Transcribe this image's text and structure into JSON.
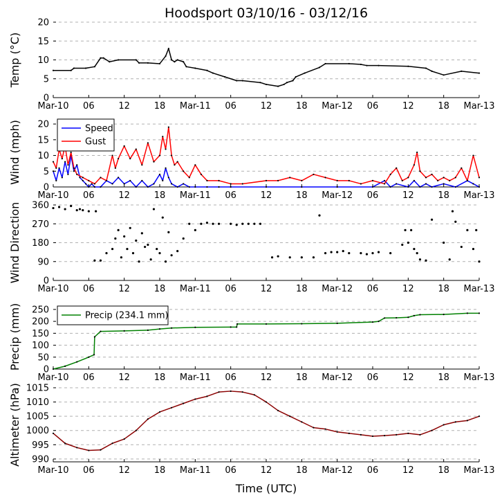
{
  "title": "Hoodsport 03/10/16 - 03/12/16",
  "x_axis": {
    "label": "Time (UTC)",
    "ticks": [
      "Mar-10",
      "06",
      "12",
      "18",
      "Mar-11",
      "06",
      "12",
      "18",
      "Mar-12",
      "06",
      "12",
      "18",
      "Mar-13"
    ],
    "range_hours": [
      0,
      72
    ]
  },
  "colors": {
    "temp": "#000000",
    "speed": "#0000ff",
    "gust": "#ff0000",
    "direction": "#ffa500",
    "precip": "#008000",
    "altimeter": "#8b0000",
    "grid": "#b0b0b0"
  },
  "chart_data": [
    {
      "type": "line",
      "panel": "temp",
      "ylabel": "Temp ($^\\circ$C)",
      "ylabel_display": "Temp (°C)",
      "ylim": [
        0,
        20
      ],
      "yticks": [
        0,
        5,
        10,
        15,
        20
      ],
      "grid": true,
      "series": [
        {
          "x": [
            0,
            3,
            3.5,
            5.5,
            7,
            8,
            8.5,
            9.5,
            11,
            14,
            14.5,
            16,
            18,
            19,
            19.5,
            20,
            20.5,
            21,
            22,
            22.5,
            24,
            26,
            27,
            29,
            31,
            32,
            35,
            36,
            38,
            39,
            39.5,
            40.5,
            41,
            42.5,
            45,
            46,
            50,
            52,
            53,
            55,
            60,
            63,
            64,
            66,
            69,
            72
          ],
          "values": [
            7.2,
            7.2,
            7.8,
            7.8,
            8.2,
            10.5,
            10.5,
            9.5,
            10,
            10,
            9.2,
            9.2,
            9,
            11,
            13,
            10,
            9.5,
            10,
            9.5,
            8.2,
            7.8,
            7.2,
            6.5,
            5.5,
            4.5,
            4.5,
            4,
            3.5,
            3,
            3.5,
            4,
            4.5,
            5.5,
            6.5,
            8,
            9,
            9,
            8.8,
            8.5,
            8.5,
            8.3,
            7.8,
            7,
            6,
            7,
            6.5
          ]
        }
      ]
    },
    {
      "type": "line",
      "panel": "wind",
      "ylabel": "Wind (mph)",
      "ylim": [
        0,
        22
      ],
      "yticks": [
        0,
        5,
        10,
        15,
        20
      ],
      "grid": true,
      "legend": "top-left",
      "series": [
        {
          "name": "Speed",
          "x": [
            0,
            0.5,
            1,
            1.5,
            2,
            2.5,
            3,
            3.5,
            4,
            4.5,
            5,
            5.5,
            6,
            6.5,
            7,
            8,
            9,
            10,
            11,
            12,
            13,
            14,
            15,
            16,
            17,
            18,
            18.5,
            19,
            19.5,
            20,
            21,
            22,
            23,
            24,
            26,
            28,
            30,
            36,
            42,
            48,
            54,
            56,
            57,
            58,
            60,
            61,
            62,
            63,
            64,
            66,
            68,
            70,
            71,
            72
          ],
          "values": [
            5,
            2,
            6,
            3,
            8,
            4,
            10,
            5,
            7,
            3,
            2,
            1,
            0,
            1,
            0,
            0,
            2,
            1,
            3,
            1,
            2,
            0,
            2,
            0,
            1,
            4,
            2,
            6,
            3,
            1,
            0,
            1,
            0,
            0,
            0,
            0,
            0,
            0,
            0,
            0,
            0,
            2,
            0,
            1,
            0,
            2,
            0,
            1,
            0,
            1,
            0,
            2,
            1,
            0
          ]
        },
        {
          "name": "Gust",
          "x": [
            0,
            0.5,
            1,
            1.5,
            2,
            2.5,
            3,
            3.5,
            4,
            5,
            6,
            7,
            8,
            9,
            10,
            10.5,
            11,
            12,
            13,
            14,
            15,
            16,
            17,
            18,
            18.5,
            19,
            19.5,
            20,
            20.5,
            21,
            22,
            23,
            24,
            25,
            26,
            28,
            30,
            32,
            36,
            38,
            40,
            42,
            44,
            46,
            48,
            50,
            52,
            54,
            56,
            57,
            58,
            59,
            60,
            61,
            61.5,
            62,
            63,
            64,
            65,
            66,
            67,
            68,
            69,
            70,
            71,
            72
          ],
          "values": [
            8,
            6,
            12,
            9,
            13,
            7,
            11,
            6,
            4,
            3,
            2,
            1,
            3,
            2,
            10,
            6,
            9,
            13,
            9,
            12,
            7,
            14,
            8,
            10,
            16,
            12,
            19,
            10,
            7,
            8,
            5,
            3,
            7,
            4,
            2,
            2,
            1,
            1,
            2,
            2,
            3,
            2,
            4,
            3,
            2,
            2,
            1,
            2,
            1,
            4,
            6,
            2,
            3,
            7,
            11,
            5,
            3,
            4,
            2,
            3,
            2,
            3,
            6,
            2,
            10,
            3
          ]
        }
      ]
    },
    {
      "type": "scatter",
      "panel": "direction",
      "ylabel": "Wind Direction",
      "ylim": [
        0,
        360
      ],
      "yticks": [
        0,
        90,
        180,
        270,
        360
      ],
      "grid": true,
      "series": [
        {
          "x": [
            0,
            1,
            2,
            3,
            4,
            4.5,
            5,
            6,
            7,
            7.2,
            8,
            9,
            10,
            10.5,
            11,
            11.5,
            12,
            12.5,
            13,
            13.5,
            14,
            14.5,
            15,
            15.5,
            16,
            16.5,
            17,
            17.5,
            18,
            18.5,
            19,
            19.5,
            20,
            21,
            22,
            23,
            24,
            25,
            26,
            27,
            28,
            30,
            31,
            32,
            33,
            34,
            35,
            37,
            38,
            40,
            42,
            44,
            45,
            46,
            47,
            48,
            49,
            50,
            52,
            53,
            54,
            55,
            57,
            59,
            59.5,
            60,
            60.5,
            61,
            61.5,
            62,
            63,
            64,
            66,
            67,
            67.5,
            68,
            69,
            70,
            71,
            71.5,
            72
          ],
          "values": [
            345,
            350,
            340,
            355,
            335,
            340,
            335,
            330,
            95,
            330,
            95,
            130,
            150,
            200,
            240,
            110,
            210,
            150,
            250,
            130,
            190,
            90,
            225,
            160,
            170,
            100,
            340,
            150,
            130,
            300,
            90,
            230,
            120,
            140,
            200,
            270,
            240,
            270,
            275,
            270,
            270,
            270,
            265,
            270,
            270,
            270,
            270,
            110,
            115,
            110,
            110,
            110,
            310,
            130,
            135,
            135,
            140,
            130,
            130,
            125,
            130,
            135,
            130,
            170,
            240,
            180,
            240,
            150,
            130,
            100,
            95,
            290,
            180,
            100,
            330,
            280,
            160,
            240,
            150,
            240,
            90
          ]
        }
      ]
    },
    {
      "type": "line",
      "panel": "precip",
      "ylabel": "Precip (mm)",
      "ylim": [
        0,
        270
      ],
      "yticks": [
        0,
        50,
        100,
        150,
        200,
        250
      ],
      "grid": true,
      "legend": "top-left",
      "series": [
        {
          "name": "Precip (234.1 mm)",
          "x": [
            0,
            2,
            4,
            6,
            6.9,
            7,
            8,
            12,
            16,
            18,
            20,
            24,
            30,
            31,
            31.1,
            36,
            42,
            48,
            54,
            55,
            56,
            58,
            60,
            61,
            62,
            66,
            70,
            72
          ],
          "values": [
            0,
            12,
            30,
            50,
            60,
            135,
            158,
            160,
            163,
            168,
            172,
            175,
            176,
            176,
            189,
            189,
            190,
            192,
            197,
            200,
            214,
            215,
            217,
            224,
            228,
            229,
            234,
            234.1
          ]
        }
      ]
    },
    {
      "type": "line",
      "panel": "altimeter",
      "ylabel": "Altimeter (hPa)",
      "ylim": [
        989,
        1015
      ],
      "yticks": [
        990,
        995,
        1000,
        1005,
        1010,
        1015
      ],
      "grid": true,
      "series": [
        {
          "x": [
            0,
            2,
            4,
            6,
            8,
            10,
            12,
            14,
            16,
            18,
            20,
            22,
            24,
            26,
            28,
            30,
            32,
            34,
            36,
            38,
            40,
            42,
            44,
            46,
            48,
            50,
            52,
            54,
            56,
            58,
            60,
            62,
            64,
            66,
            68,
            70,
            72
          ],
          "values": [
            999,
            995.5,
            994,
            993,
            993.2,
            995.5,
            997,
            1000,
            1004,
            1006.5,
            1008,
            1009.5,
            1011,
            1012,
            1013.5,
            1013.8,
            1013.5,
            1012.5,
            1010,
            1007,
            1005,
            1003,
            1001,
            1000.5,
            999.5,
            999,
            998.5,
            998,
            998.2,
            998.5,
            999,
            998.5,
            1000,
            1002,
            1003,
            1003.5,
            1005
          ]
        }
      ]
    }
  ]
}
